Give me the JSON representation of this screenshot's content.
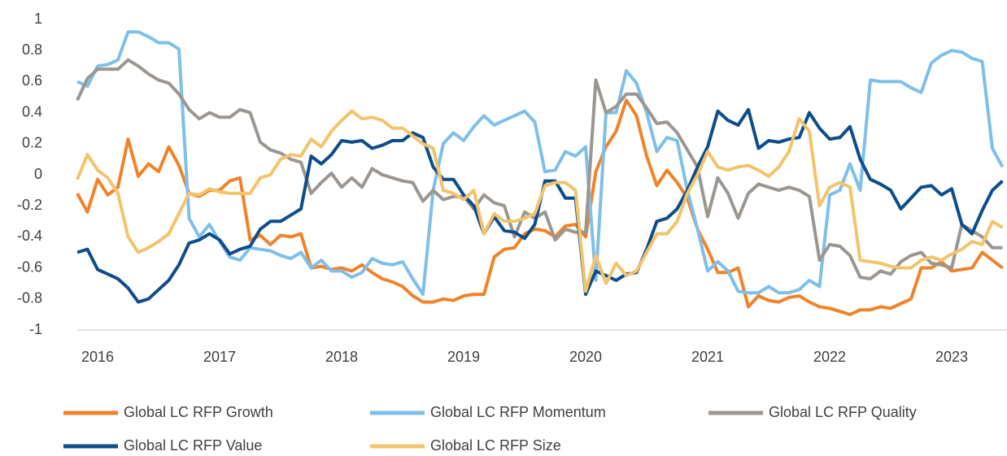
{
  "chart_data": {
    "type": "line",
    "categories": [
      null,
      null,
      "2016",
      null,
      null,
      null,
      null,
      null,
      null,
      null,
      null,
      null,
      null,
      null,
      "2017",
      null,
      null,
      null,
      null,
      null,
      null,
      null,
      null,
      null,
      null,
      null,
      "2018",
      null,
      null,
      null,
      null,
      null,
      null,
      null,
      null,
      null,
      null,
      null,
      "2019",
      null,
      null,
      null,
      null,
      null,
      null,
      null,
      null,
      null,
      null,
      null,
      "2020",
      null,
      null,
      null,
      null,
      null,
      null,
      null,
      null,
      null,
      null,
      null,
      "2021",
      null,
      null,
      null,
      null,
      null,
      null,
      null,
      null,
      null,
      null,
      null,
      "2022",
      null,
      null,
      null,
      null,
      null,
      null,
      null,
      null,
      null,
      null,
      null,
      "2023",
      null,
      null,
      null,
      null,
      null
    ],
    "ylim": [
      -1,
      1
    ],
    "yticks": [
      1,
      0.8,
      0.6,
      0.4,
      0.2,
      0,
      -0.2,
      -0.4,
      -0.6,
      -0.8,
      -1
    ],
    "series": [
      {
        "name": "Global LC RFP Growth",
        "color": "#f0832a",
        "values": [
          -0.12,
          -0.24,
          -0.03,
          -0.13,
          -0.08,
          0.23,
          -0.01,
          0.07,
          0.02,
          0.18,
          0.06,
          -0.12,
          -0.14,
          -0.1,
          -0.1,
          -0.04,
          -0.02,
          -0.42,
          -0.39,
          -0.45,
          -0.39,
          -0.4,
          -0.38,
          -0.6,
          -0.59,
          -0.61,
          -0.6,
          -0.62,
          -0.58,
          -0.63,
          -0.67,
          -0.69,
          -0.72,
          -0.78,
          -0.82,
          -0.82,
          -0.8,
          -0.81,
          -0.78,
          -0.77,
          -0.77,
          -0.53,
          -0.48,
          -0.47,
          -0.38,
          -0.35,
          -0.36,
          -0.4,
          -0.33,
          -0.32,
          -0.4,
          0.02,
          0.18,
          0.28,
          0.48,
          0.38,
          0.12,
          -0.07,
          0.03,
          -0.05,
          -0.15,
          -0.35,
          -0.48,
          -0.63,
          -0.63,
          -0.6,
          -0.85,
          -0.78,
          -0.81,
          -0.82,
          -0.79,
          -0.78,
          -0.82,
          -0.85,
          -0.86,
          -0.88,
          -0.9,
          -0.87,
          -0.87,
          -0.85,
          -0.86,
          -0.83,
          -0.8,
          -0.6,
          -0.6,
          -0.56,
          -0.62,
          -0.61,
          -0.6,
          -0.5,
          -0.55,
          -0.6
        ]
      },
      {
        "name": "Global LC RFP Momentum",
        "color": "#7fbfe8",
        "values": [
          0.6,
          0.57,
          0.7,
          0.71,
          0.74,
          0.92,
          0.92,
          0.89,
          0.85,
          0.85,
          0.81,
          -0.28,
          -0.4,
          -0.32,
          -0.43,
          -0.53,
          -0.55,
          -0.47,
          -0.48,
          -0.49,
          -0.52,
          -0.54,
          -0.5,
          -0.6,
          -0.55,
          -0.62,
          -0.62,
          -0.66,
          -0.63,
          -0.54,
          -0.57,
          -0.58,
          -0.56,
          -0.67,
          -0.77,
          -0.1,
          0.2,
          0.27,
          0.22,
          0.31,
          0.38,
          0.32,
          0.35,
          0.38,
          0.41,
          0.34,
          0.02,
          0.03,
          0.15,
          0.12,
          0.18,
          -0.68,
          0.4,
          0.4,
          0.67,
          0.59,
          0.4,
          0.15,
          0.24,
          0.22,
          -0.1,
          -0.35,
          -0.62,
          -0.56,
          -0.62,
          -0.75,
          -0.76,
          -0.76,
          -0.72,
          -0.76,
          -0.76,
          -0.74,
          -0.68,
          -0.72,
          -0.13,
          -0.1,
          0.07,
          -0.1,
          0.61,
          0.6,
          0.6,
          0.6,
          0.56,
          0.53,
          0.72,
          0.77,
          0.8,
          0.79,
          0.75,
          0.73,
          0.17,
          0.05
        ]
      },
      {
        "name": "Global LC RFP Quality",
        "color": "#9c9691",
        "values": [
          0.48,
          0.62,
          0.68,
          0.68,
          0.68,
          0.74,
          0.7,
          0.65,
          0.61,
          0.59,
          0.52,
          0.42,
          0.36,
          0.4,
          0.37,
          0.37,
          0.42,
          0.4,
          0.21,
          0.16,
          0.14,
          0.1,
          0.08,
          -0.12,
          -0.05,
          0.01,
          -0.08,
          -0.02,
          -0.08,
          0.04,
          0.0,
          -0.02,
          -0.04,
          -0.05,
          -0.17,
          -0.1,
          -0.16,
          -0.14,
          -0.14,
          -0.22,
          -0.13,
          -0.18,
          -0.2,
          -0.4,
          -0.24,
          -0.28,
          -0.24,
          -0.42,
          -0.35,
          -0.37,
          -0.37,
          0.61,
          0.4,
          0.44,
          0.52,
          0.52,
          0.43,
          0.33,
          0.34,
          0.27,
          0.16,
          0.05,
          -0.27,
          -0.02,
          -0.12,
          -0.28,
          -0.12,
          -0.06,
          -0.08,
          -0.1,
          -0.08,
          -0.1,
          -0.14,
          -0.55,
          -0.45,
          -0.46,
          -0.52,
          -0.66,
          -0.67,
          -0.62,
          -0.64,
          -0.56,
          -0.52,
          -0.5,
          -0.57,
          -0.58,
          -0.6,
          -0.32,
          -0.36,
          -0.4,
          -0.47,
          -0.47
        ]
      },
      {
        "name": "Global LC RFP Value",
        "color": "#0d4d8a",
        "values": [
          -0.5,
          -0.48,
          -0.61,
          -0.64,
          -0.67,
          -0.73,
          -0.82,
          -0.8,
          -0.74,
          -0.68,
          -0.58,
          -0.44,
          -0.42,
          -0.38,
          -0.42,
          -0.51,
          -0.48,
          -0.46,
          -0.35,
          -0.3,
          -0.3,
          -0.26,
          -0.22,
          0.12,
          0.07,
          0.13,
          0.22,
          0.21,
          0.22,
          0.17,
          0.19,
          0.22,
          0.22,
          0.27,
          0.24,
          0.05,
          -0.03,
          -0.03,
          -0.13,
          -0.2,
          -0.38,
          -0.27,
          -0.36,
          -0.37,
          -0.41,
          -0.32,
          -0.04,
          -0.04,
          -0.15,
          -0.15,
          -0.77,
          -0.62,
          -0.65,
          -0.68,
          -0.64,
          -0.63,
          -0.48,
          -0.3,
          -0.28,
          -0.22,
          -0.1,
          0.05,
          0.18,
          0.41,
          0.35,
          0.32,
          0.42,
          0.17,
          0.22,
          0.21,
          0.23,
          0.24,
          0.4,
          0.3,
          0.23,
          0.24,
          0.31,
          0.1,
          -0.03,
          -0.06,
          -0.1,
          -0.22,
          -0.15,
          -0.08,
          -0.07,
          -0.13,
          -0.09,
          -0.32,
          -0.38,
          -0.23,
          -0.1,
          -0.04
        ]
      },
      {
        "name": "Global LC RFP Size",
        "color": "#f2c46b",
        "values": [
          -0.03,
          0.13,
          0.03,
          -0.02,
          -0.12,
          -0.4,
          -0.5,
          -0.47,
          -0.43,
          -0.38,
          -0.25,
          -0.12,
          -0.13,
          -0.09,
          -0.11,
          -0.12,
          -0.12,
          -0.12,
          -0.02,
          0.0,
          0.1,
          0.13,
          0.12,
          0.23,
          0.18,
          0.28,
          0.35,
          0.41,
          0.36,
          0.37,
          0.35,
          0.3,
          0.3,
          0.25,
          0.2,
          0.17,
          -0.1,
          -0.12,
          -0.16,
          -0.1,
          -0.38,
          -0.25,
          -0.3,
          -0.3,
          -0.28,
          -0.25,
          -0.07,
          -0.05,
          -0.05,
          -0.1,
          -0.75,
          -0.52,
          -0.7,
          -0.57,
          -0.65,
          -0.62,
          -0.5,
          -0.38,
          -0.38,
          -0.3,
          -0.12,
          0.0,
          0.15,
          0.05,
          0.03,
          0.05,
          0.06,
          0.03,
          -0.01,
          0.05,
          0.15,
          0.36,
          0.28,
          -0.2,
          -0.08,
          -0.05,
          -0.08,
          -0.55,
          -0.56,
          -0.57,
          -0.59,
          -0.6,
          -0.6,
          -0.55,
          -0.53,
          -0.55,
          -0.51,
          -0.48,
          -0.43,
          -0.45,
          -0.3,
          -0.34
        ]
      }
    ]
  }
}
